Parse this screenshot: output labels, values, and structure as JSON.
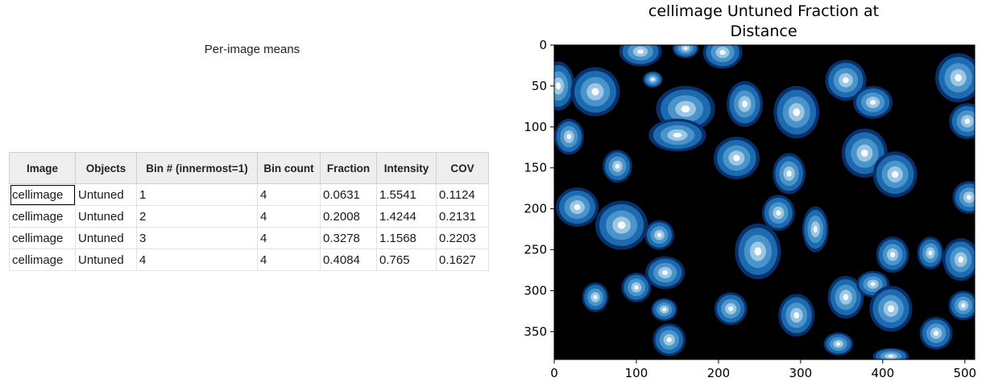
{
  "table": {
    "title": "Per-image means",
    "columns": [
      "Image",
      "Objects",
      "Bin # (innermost=1)",
      "Bin count",
      "Fraction",
      "Intensity",
      "COV"
    ],
    "rows": [
      [
        "cellimage",
        "Untuned",
        "1",
        "4",
        "0.0631",
        "1.5541",
        "0.1124"
      ],
      [
        "cellimage",
        "Untuned",
        "2",
        "4",
        "0.2008",
        "1.4244",
        "0.2131"
      ],
      [
        "cellimage",
        "Untuned",
        "3",
        "4",
        "0.3278",
        "1.1568",
        "0.2203"
      ],
      [
        "cellimage",
        "Untuned",
        "4",
        "4",
        "0.4084",
        "0.765",
        "0.1627"
      ]
    ]
  },
  "plot": {
    "title_line1": "cellimage Untuned Fraction at",
    "title_line2": "Distance",
    "x_ticks": [
      "0",
      "100",
      "200",
      "300",
      "400",
      "500"
    ],
    "y_ticks": [
      "0",
      "50",
      "100",
      "150",
      "200",
      "250",
      "300",
      "350"
    ],
    "x_range": [
      0,
      512
    ],
    "y_range": [
      0,
      384
    ],
    "colormap": [
      "#08306b",
      "#1c6aaf",
      "#4a94c9",
      "#9cc6e3",
      "#f7fbff"
    ],
    "background_color": "#000000"
  }
}
